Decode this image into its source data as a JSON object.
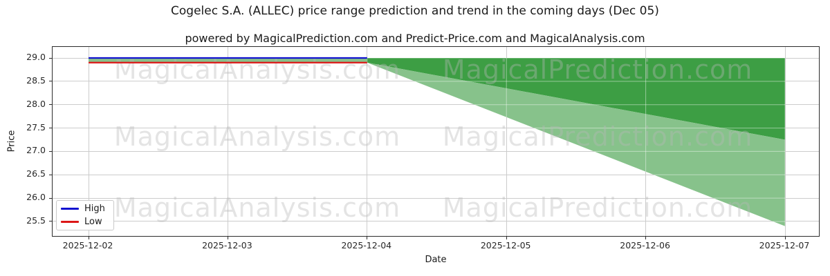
{
  "chart_data": {
    "type": "area",
    "title": "Cogelec S.A. (ALLEC) price range prediction and trend in the coming days (Dec 05)",
    "subtitle": "powered by MagicalPrediction.com and Predict-Price.com and MagicalAnalysis.com",
    "xlabel": "Date",
    "ylabel": "Price",
    "x_ticks": [
      "2025-12-02",
      "2025-12-03",
      "2025-12-04",
      "2025-12-05",
      "2025-12-06",
      "2025-12-07"
    ],
    "y_ticks": [
      29.0,
      28.5,
      28.0,
      27.5,
      27.0,
      26.5,
      26.0,
      25.5
    ],
    "ylim": [
      25.16,
      29.24
    ],
    "grid": true,
    "legend": {
      "position": "lower left",
      "entries": [
        {
          "label": "High",
          "color": "#1212d0"
        },
        {
          "label": "Low",
          "color": "#dc1616"
        }
      ]
    },
    "series": [
      {
        "name": "High",
        "type": "line",
        "color": "#1212d0",
        "x": [
          "2025-12-02",
          "2025-12-03",
          "2025-12-04"
        ],
        "values": [
          29.0,
          29.0,
          29.0
        ]
      },
      {
        "name": "Low",
        "type": "line",
        "color": "#dc1616",
        "x": [
          "2025-12-02",
          "2025-12-03",
          "2025-12-04"
        ],
        "values": [
          28.9,
          28.9,
          28.9
        ]
      }
    ],
    "bands": [
      {
        "name": "high-low-range",
        "color": "#87c28b",
        "x": [
          "2025-12-02",
          "2025-12-04"
        ],
        "upper": [
          29.0,
          29.0
        ],
        "lower": [
          28.9,
          28.9
        ]
      },
      {
        "name": "forecast-fan-upper",
        "color": "#3d9e44",
        "x": [
          "2025-12-04",
          "2025-12-07"
        ],
        "upper": [
          29.0,
          29.0
        ],
        "lower": [
          28.9,
          27.25
        ]
      },
      {
        "name": "forecast-fan-lower",
        "color": "#87c28b",
        "x": [
          "2025-12-04",
          "2025-12-07"
        ],
        "upper": [
          28.9,
          27.25
        ],
        "lower": [
          28.9,
          25.4
        ]
      }
    ],
    "watermarks": {
      "analysis": "MagicalAnalysis.com",
      "prediction": "MagicalPrediction.com"
    }
  }
}
